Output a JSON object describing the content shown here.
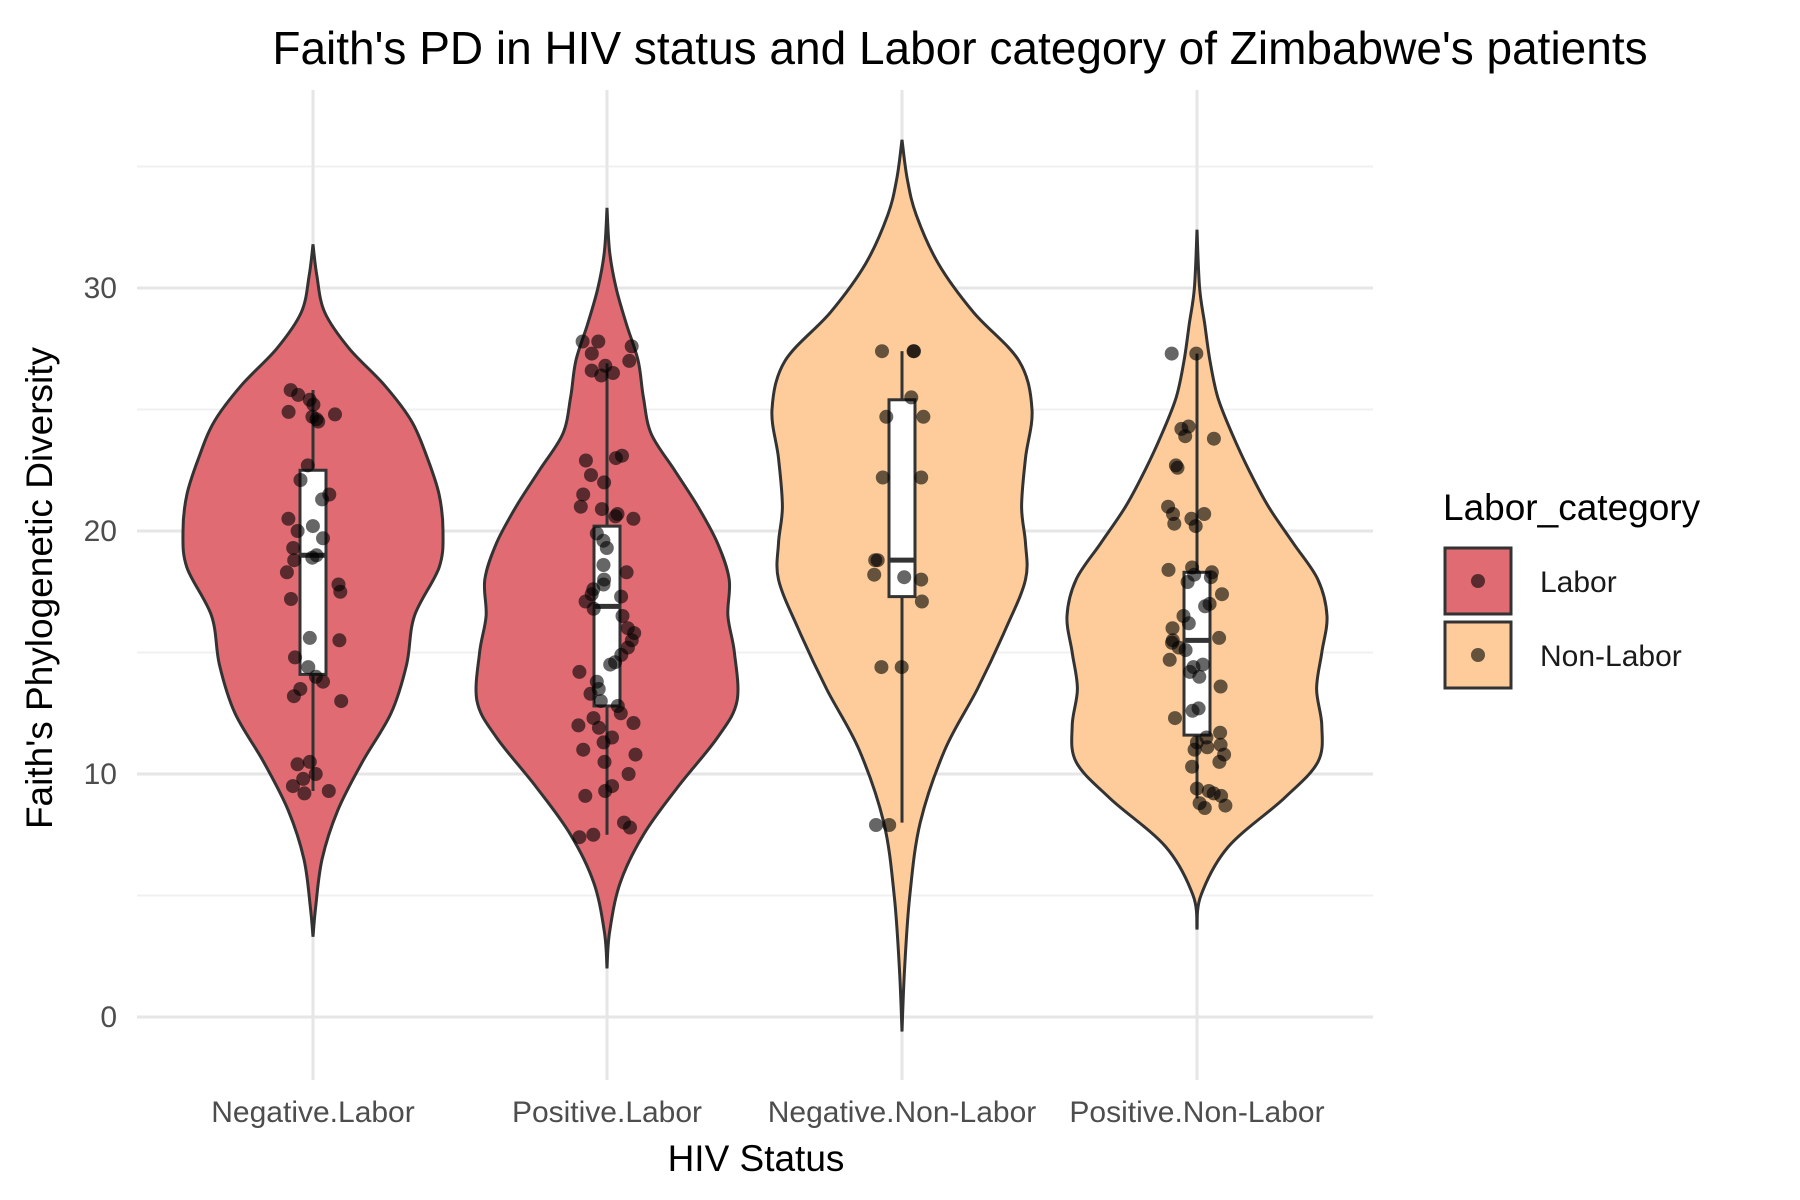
{
  "chart_data": {
    "type": "violin",
    "title": "Faith's PD in HIV status and Labor category of Zimbabwe's patients",
    "xlabel": "HIV Status",
    "ylabel": "Faith's Phylogenetic Diversity",
    "ylim": [
      -2.5,
      38
    ],
    "yticks": [
      0,
      10,
      20,
      30
    ],
    "grid": true,
    "legend": {
      "title": "Labor_category",
      "placement": "right",
      "entries": [
        {
          "label": "Labor",
          "color": "#e06b73"
        },
        {
          "label": "Non-Labor",
          "color": "#fdcc9a"
        }
      ]
    },
    "categories": [
      "Negative.Labor",
      "Positive.Labor",
      "Negative.Non-Labor",
      "Positive.Non-Labor"
    ],
    "groups": [
      {
        "category": "Negative.Labor",
        "labor_category": "Labor",
        "range": [
          3.3,
          31.8
        ],
        "density": [
          [
            3.3,
            0.0
          ],
          [
            4.5,
            0.02
          ],
          [
            6.5,
            0.07
          ],
          [
            8.5,
            0.19
          ],
          [
            10.5,
            0.38
          ],
          [
            12.5,
            0.6
          ],
          [
            14.5,
            0.72
          ],
          [
            16.5,
            0.78
          ],
          [
            18.5,
            0.97
          ],
          [
            20,
            1.0
          ],
          [
            21.5,
            0.97
          ],
          [
            23,
            0.88
          ],
          [
            24.5,
            0.76
          ],
          [
            26,
            0.55
          ],
          [
            27.5,
            0.28
          ],
          [
            29,
            0.09
          ],
          [
            30.5,
            0.03
          ],
          [
            31.8,
            0.0
          ]
        ],
        "box": {
          "min": 9.3,
          "q1": 14.1,
          "median": 19.0,
          "q3": 22.5,
          "max": 25.8
        },
        "points": [
          24.7,
          24.6,
          25.8,
          25.6,
          25.4,
          25.2,
          24.9,
          24.8,
          24.5,
          22.7,
          22.1,
          21.5,
          21.3,
          20.5,
          20.2,
          20.0,
          19.7,
          19.3,
          19.0,
          18.9,
          18.8,
          18.3,
          17.8,
          17.5,
          17.2,
          15.6,
          15.5,
          14.8,
          14.4,
          14.0,
          13.8,
          13.5,
          13.2,
          13.0,
          10.5,
          10.4,
          10.0,
          9.8,
          9.5,
          9.3,
          9.2
        ]
      },
      {
        "category": "Positive.Labor",
        "labor_category": "Labor",
        "range": [
          2.0,
          33.3
        ],
        "density": [
          [
            2.0,
            0.0
          ],
          [
            3.5,
            0.02
          ],
          [
            5.5,
            0.1
          ],
          [
            7.5,
            0.28
          ],
          [
            9.5,
            0.55
          ],
          [
            11.5,
            0.85
          ],
          [
            13,
            1.0
          ],
          [
            15,
            0.98
          ],
          [
            16.5,
            0.93
          ],
          [
            18,
            0.94
          ],
          [
            19.5,
            0.85
          ],
          [
            21,
            0.7
          ],
          [
            22.5,
            0.52
          ],
          [
            24,
            0.34
          ],
          [
            25.5,
            0.28
          ],
          [
            27,
            0.24
          ],
          [
            28.5,
            0.15
          ],
          [
            30,
            0.07
          ],
          [
            31.5,
            0.02
          ],
          [
            33.3,
            0.0
          ]
        ],
        "box": {
          "min": 7.5,
          "q1": 12.8,
          "median": 16.9,
          "q3": 20.2,
          "max": 26.9
        },
        "points": [
          27.8,
          27.8,
          27.6,
          27.3,
          27.0,
          26.8,
          26.6,
          26.5,
          26.4,
          23.1,
          23.0,
          22.9,
          22.3,
          22.0,
          21.5,
          21.0,
          20.9,
          20.7,
          20.6,
          20.5,
          19.9,
          19.6,
          19.3,
          18.6,
          18.3,
          18.0,
          17.8,
          17.6,
          17.4,
          17.3,
          17.1,
          16.8,
          16.5,
          16.0,
          15.8,
          15.5,
          15.2,
          14.9,
          14.6,
          14.5,
          14.2,
          13.8,
          13.5,
          13.3,
          13.0,
          12.8,
          12.5,
          12.3,
          12.1,
          12.0,
          11.9,
          11.5,
          11.3,
          11.0,
          10.8,
          10.5,
          10.0,
          9.5,
          9.3,
          9.1,
          8.0,
          7.8,
          7.5,
          7.4
        ]
      },
      {
        "category": "Negative.Non-Labor",
        "labor_category": "Non-Labor",
        "range": [
          -0.6,
          36.1
        ],
        "density": [
          [
            -0.6,
            0.0
          ],
          [
            2,
            0.02
          ],
          [
            5,
            0.06
          ],
          [
            8,
            0.14
          ],
          [
            11,
            0.33
          ],
          [
            13.5,
            0.58
          ],
          [
            16,
            0.8
          ],
          [
            18,
            0.95
          ],
          [
            19.5,
            0.95
          ],
          [
            21,
            0.92
          ],
          [
            23,
            0.95
          ],
          [
            25,
            1.0
          ],
          [
            27,
            0.9
          ],
          [
            29,
            0.55
          ],
          [
            31,
            0.28
          ],
          [
            33,
            0.11
          ],
          [
            34.5,
            0.04
          ],
          [
            36.1,
            0.0
          ]
        ],
        "box": {
          "min": 8.0,
          "q1": 17.3,
          "median": 18.8,
          "q3": 25.4,
          "max": 27.4
        },
        "points": [
          27.4,
          27.4,
          27.4,
          25.5,
          24.7,
          24.7,
          22.2,
          22.2,
          18.8,
          18.8,
          18.2,
          18.1,
          18.0,
          17.1,
          14.4,
          14.4,
          7.9,
          7.9
        ]
      },
      {
        "category": "Positive.Non-Labor",
        "labor_category": "Non-Labor",
        "range": [
          3.6,
          32.4
        ],
        "density": [
          [
            3.6,
            0.0
          ],
          [
            5,
            0.03
          ],
          [
            7,
            0.24
          ],
          [
            9,
            0.67
          ],
          [
            10.5,
            0.93
          ],
          [
            12,
            0.96
          ],
          [
            13.5,
            0.92
          ],
          [
            15,
            0.96
          ],
          [
            16.5,
            1.0
          ],
          [
            18,
            0.93
          ],
          [
            19.5,
            0.74
          ],
          [
            21,
            0.55
          ],
          [
            22.5,
            0.4
          ],
          [
            24,
            0.27
          ],
          [
            25.5,
            0.16
          ],
          [
            27,
            0.1
          ],
          [
            28.5,
            0.06
          ],
          [
            30,
            0.02
          ],
          [
            32.4,
            0.0
          ]
        ],
        "box": {
          "min": 9.0,
          "q1": 11.6,
          "median": 15.5,
          "q3": 18.3,
          "max": 27.3
        },
        "points": [
          27.3,
          27.3,
          24.3,
          24.2,
          23.9,
          23.8,
          22.7,
          22.6,
          21.0,
          20.7,
          20.7,
          20.5,
          20.3,
          20.2,
          18.5,
          18.4,
          18.3,
          18.2,
          18.1,
          17.9,
          17.4,
          17.0,
          16.9,
          16.5,
          16.2,
          16.0,
          15.6,
          15.5,
          15.4,
          15.2,
          15.1,
          14.7,
          14.5,
          14.4,
          14.2,
          14.0,
          13.6,
          12.7,
          12.6,
          12.3,
          11.7,
          11.5,
          11.3,
          11.2,
          11.1,
          11.0,
          10.8,
          10.5,
          10.3,
          9.4,
          9.3,
          9.2,
          9.1,
          8.8,
          8.7,
          8.6
        ]
      }
    ]
  }
}
